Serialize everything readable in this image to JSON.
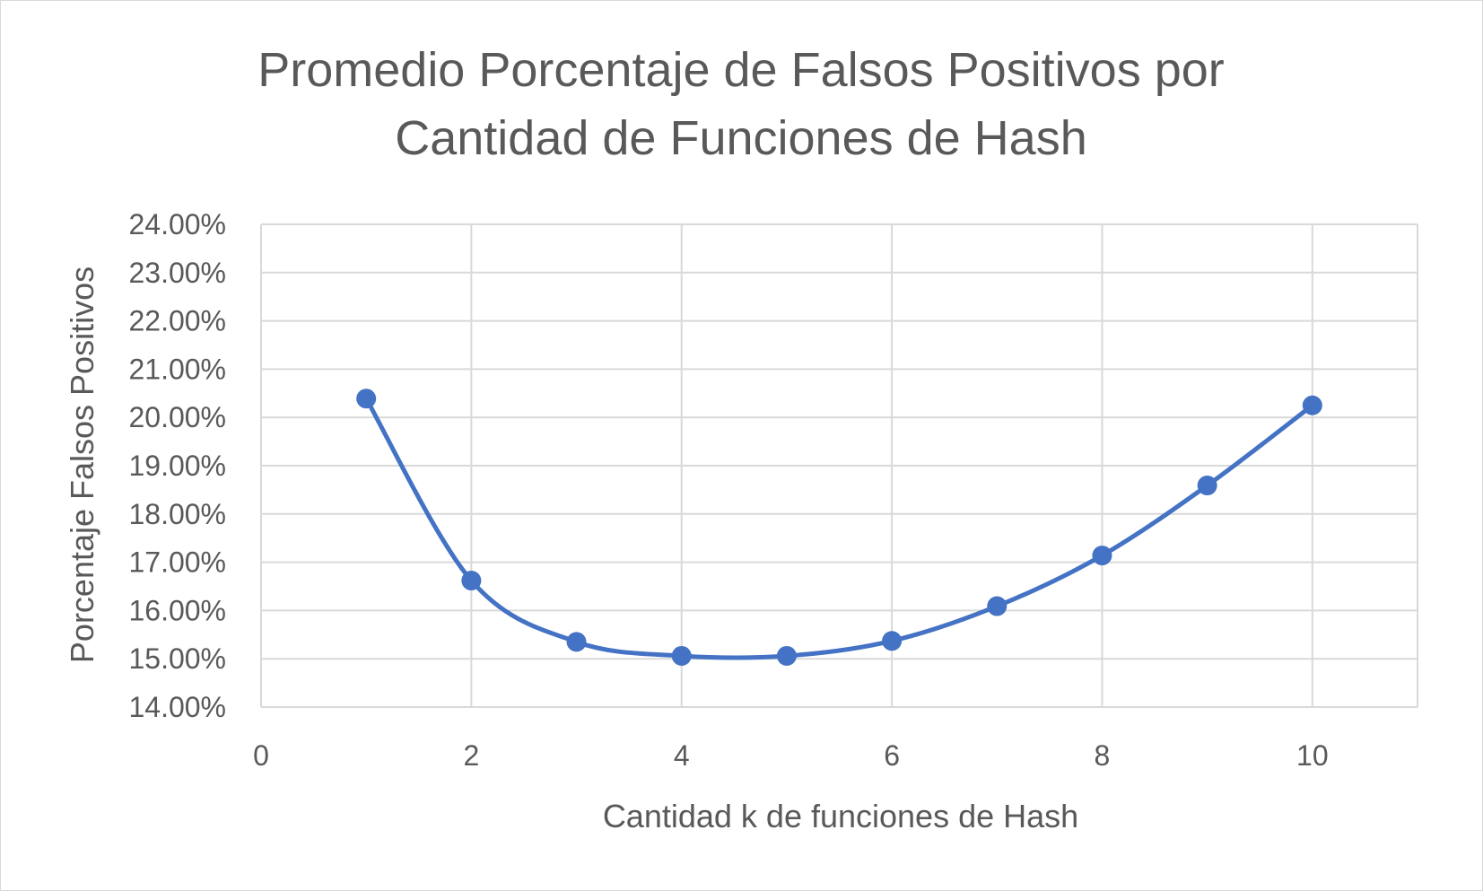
{
  "chart_data": {
    "type": "scatter",
    "title_lines": [
      "Promedio Porcentaje de Falsos Positivos por",
      "Cantidad de Funciones de Hash"
    ],
    "xlabel": "Cantidad k de funciones de Hash",
    "ylabel": "Porcentaje Falsos Positivos",
    "xlim": [
      0,
      11
    ],
    "ylim": [
      0.14,
      0.24
    ],
    "x_ticks": [
      0,
      2,
      4,
      6,
      8,
      10
    ],
    "x_tick_labels": [
      "0",
      "2",
      "4",
      "6",
      "8",
      "10"
    ],
    "y_ticks": [
      0.14,
      0.15,
      0.16,
      0.17,
      0.18,
      0.19,
      0.2,
      0.21,
      0.22,
      0.23,
      0.24
    ],
    "y_tick_labels": [
      "14.00%",
      "15.00%",
      "16.00%",
      "17.00%",
      "18.00%",
      "19.00%",
      "20.00%",
      "21.00%",
      "22.00%",
      "23.00%",
      "24.00%"
    ],
    "grid": true,
    "line_style": "smooth",
    "series": [
      {
        "color": "#4472c4",
        "points": [
          {
            "x": 1,
            "y": 0.2039
          },
          {
            "x": 2,
            "y": 0.1662
          },
          {
            "x": 3,
            "y": 0.1535
          },
          {
            "x": 4,
            "y": 0.1506
          },
          {
            "x": 5,
            "y": 0.1506
          },
          {
            "x": 6,
            "y": 0.1537
          },
          {
            "x": 7,
            "y": 0.1609
          },
          {
            "x": 8,
            "y": 0.1714
          },
          {
            "x": 9,
            "y": 0.1859
          },
          {
            "x": 10,
            "y": 0.2025
          }
        ]
      }
    ],
    "colors": {
      "gridline": "#d9d9d9",
      "text": "#595959",
      "border": "#d9d9d9"
    }
  }
}
